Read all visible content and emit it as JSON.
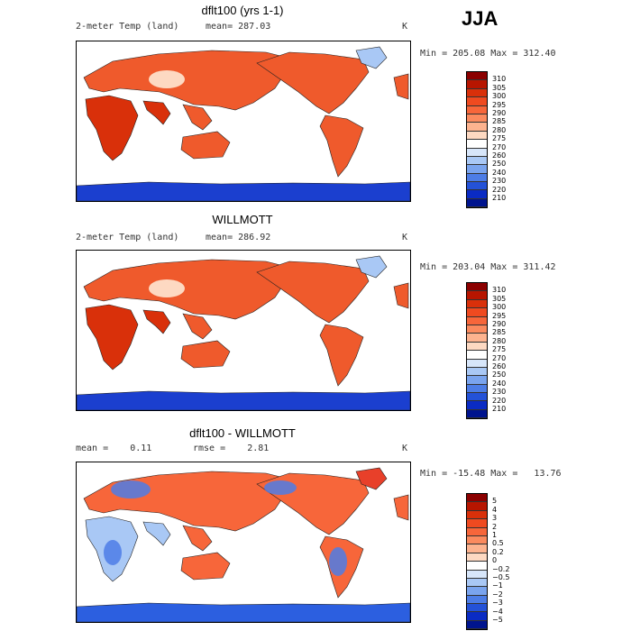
{
  "season": "JJA",
  "panels": [
    {
      "title": "dflt100 (yrs 1-1)",
      "variable": "2-meter Temp (land)",
      "mean_label": "mean= 287.03",
      "units": "K",
      "minmax": "Min = 205.08 Max = 312.40"
    },
    {
      "title": "WILLMOTT",
      "variable": "2-meter Temp (land)",
      "mean_label": "mean= 286.92",
      "units": "K",
      "minmax": "Min = 203.04 Max = 311.42"
    },
    {
      "title": "dflt100 - WILLMOTT",
      "mean_label": "mean =    0.11",
      "rmse_label": "rmse =    2.81",
      "units": "K",
      "minmax": "Min = -15.48 Max =   13.76"
    }
  ],
  "temp_colorbar": {
    "labels": [
      "310",
      "305",
      "300",
      "295",
      "290",
      "285",
      "280",
      "275",
      "270",
      "260",
      "250",
      "240",
      "230",
      "220",
      "210"
    ],
    "colors": [
      "#8b0000",
      "#b71500",
      "#d9300a",
      "#ef4a20",
      "#f7663a",
      "#fb8a5e",
      "#fdb38f",
      "#fdd9c2",
      "#ffffff",
      "#d7e6fa",
      "#a9c8f5",
      "#7aa4ee",
      "#4d7de6",
      "#2452d8",
      "#0a2bc4",
      "#00148e"
    ]
  },
  "diff_colorbar": {
    "labels": [
      "5",
      "4",
      "3",
      "2",
      "1",
      "0.5",
      "0.2",
      "0",
      "−0.2",
      "−0.5",
      "−1",
      "−2",
      "−3",
      "−4",
      "−5"
    ],
    "colors": [
      "#8b0000",
      "#b71500",
      "#d9300a",
      "#ef4a20",
      "#f7663a",
      "#fb8a5e",
      "#fdb38f",
      "#fdd9c2",
      "#ffffff",
      "#d7e6fa",
      "#a9c8f5",
      "#7aa4ee",
      "#4d7de6",
      "#2452d8",
      "#0a2bc4",
      "#00148e"
    ]
  }
}
